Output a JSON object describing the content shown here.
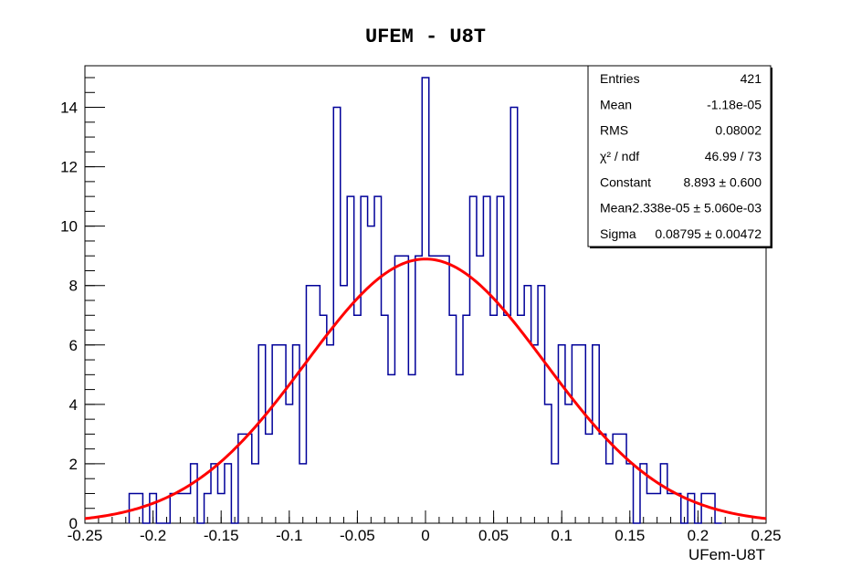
{
  "chart_data": {
    "type": "histogram",
    "title": "UFEM - U8T",
    "xlabel": "UFem-U8T",
    "ylabel": "",
    "xlim": [
      -0.25,
      0.25
    ],
    "ylim": [
      0,
      15.4
    ],
    "x_ticks": [
      -0.25,
      -0.2,
      -0.15,
      -0.1,
      -0.05,
      0,
      0.05,
      0.1,
      0.15,
      0.2,
      0.25
    ],
    "x_tick_labels": [
      "-0.25",
      "-0.2",
      "-0.15",
      "-0.1",
      "-0.05",
      "0",
      "0.05",
      "0.1",
      "0.15",
      "0.2",
      "0.25"
    ],
    "y_ticks": [
      0,
      2,
      4,
      6,
      8,
      10,
      12,
      14
    ],
    "y_tick_labels": [
      "0",
      "2",
      "4",
      "6",
      "8",
      "10",
      "12",
      "14"
    ],
    "bin_width": 0.005,
    "bins": [
      {
        "x": -0.215,
        "count": 1
      },
      {
        "x": -0.21,
        "count": 1
      },
      {
        "x": -0.205,
        "count": 0
      },
      {
        "x": -0.2,
        "count": 1
      },
      {
        "x": -0.195,
        "count": 0
      },
      {
        "x": -0.19,
        "count": 0
      },
      {
        "x": -0.185,
        "count": 1
      },
      {
        "x": -0.18,
        "count": 1
      },
      {
        "x": -0.175,
        "count": 1
      },
      {
        "x": -0.17,
        "count": 2
      },
      {
        "x": -0.165,
        "count": 0
      },
      {
        "x": -0.16,
        "count": 1
      },
      {
        "x": -0.155,
        "count": 2
      },
      {
        "x": -0.15,
        "count": 1
      },
      {
        "x": -0.145,
        "count": 2
      },
      {
        "x": -0.14,
        "count": 0
      },
      {
        "x": -0.135,
        "count": 3
      },
      {
        "x": -0.13,
        "count": 3
      },
      {
        "x": -0.125,
        "count": 2
      },
      {
        "x": -0.12,
        "count": 6
      },
      {
        "x": -0.115,
        "count": 3
      },
      {
        "x": -0.11,
        "count": 6
      },
      {
        "x": -0.105,
        "count": 6
      },
      {
        "x": -0.1,
        "count": 4
      },
      {
        "x": -0.095,
        "count": 6
      },
      {
        "x": -0.09,
        "count": 2
      },
      {
        "x": -0.085,
        "count": 8
      },
      {
        "x": -0.08,
        "count": 8
      },
      {
        "x": -0.075,
        "count": 7
      },
      {
        "x": -0.07,
        "count": 6
      },
      {
        "x": -0.065,
        "count": 14
      },
      {
        "x": -0.06,
        "count": 8
      },
      {
        "x": -0.055,
        "count": 11
      },
      {
        "x": -0.05,
        "count": 7
      },
      {
        "x": -0.045,
        "count": 11
      },
      {
        "x": -0.04,
        "count": 10
      },
      {
        "x": -0.035,
        "count": 11
      },
      {
        "x": -0.03,
        "count": 7
      },
      {
        "x": -0.025,
        "count": 5
      },
      {
        "x": -0.02,
        "count": 9
      },
      {
        "x": -0.015,
        "count": 9
      },
      {
        "x": -0.01,
        "count": 5
      },
      {
        "x": -0.005,
        "count": 9
      },
      {
        "x": 0.0,
        "count": 15
      },
      {
        "x": 0.005,
        "count": 9
      },
      {
        "x": 0.01,
        "count": 9
      },
      {
        "x": 0.015,
        "count": 9
      },
      {
        "x": 0.02,
        "count": 7
      },
      {
        "x": 0.025,
        "count": 5
      },
      {
        "x": 0.03,
        "count": 7
      },
      {
        "x": 0.035,
        "count": 11
      },
      {
        "x": 0.04,
        "count": 9
      },
      {
        "x": 0.045,
        "count": 11
      },
      {
        "x": 0.05,
        "count": 7
      },
      {
        "x": 0.055,
        "count": 11
      },
      {
        "x": 0.06,
        "count": 7
      },
      {
        "x": 0.065,
        "count": 14
      },
      {
        "x": 0.07,
        "count": 7
      },
      {
        "x": 0.075,
        "count": 8
      },
      {
        "x": 0.08,
        "count": 6
      },
      {
        "x": 0.085,
        "count": 8
      },
      {
        "x": 0.09,
        "count": 4
      },
      {
        "x": 0.095,
        "count": 2
      },
      {
        "x": 0.1,
        "count": 6
      },
      {
        "x": 0.105,
        "count": 4
      },
      {
        "x": 0.11,
        "count": 6
      },
      {
        "x": 0.115,
        "count": 6
      },
      {
        "x": 0.12,
        "count": 3
      },
      {
        "x": 0.125,
        "count": 6
      },
      {
        "x": 0.13,
        "count": 3
      },
      {
        "x": 0.135,
        "count": 2
      },
      {
        "x": 0.14,
        "count": 3
      },
      {
        "x": 0.145,
        "count": 3
      },
      {
        "x": 0.15,
        "count": 2
      },
      {
        "x": 0.155,
        "count": 0
      },
      {
        "x": 0.16,
        "count": 2
      },
      {
        "x": 0.165,
        "count": 1
      },
      {
        "x": 0.17,
        "count": 1
      },
      {
        "x": 0.175,
        "count": 2
      },
      {
        "x": 0.18,
        "count": 1
      },
      {
        "x": 0.185,
        "count": 1
      },
      {
        "x": 0.19,
        "count": 0
      },
      {
        "x": 0.195,
        "count": 1
      },
      {
        "x": 0.2,
        "count": 0
      },
      {
        "x": 0.205,
        "count": 1
      },
      {
        "x": 0.21,
        "count": 1
      },
      {
        "x": 0.215,
        "count": 0
      }
    ],
    "histogram_color": "#000099",
    "fit": {
      "function": "gaus",
      "constant": 8.893,
      "mean": -2.338e-05,
      "sigma": 0.08795,
      "color": "#ff0000"
    },
    "stats_box": {
      "placement": "top-right",
      "rows": [
        {
          "label": "Entries",
          "value": "421"
        },
        {
          "label": "Mean",
          "value": "-1.18e-05"
        },
        {
          "label": "RMS",
          "value": "0.08002"
        },
        {
          "label": "χ² / ndf",
          "value": "46.99 / 73"
        },
        {
          "label": "Constant",
          "value": "8.893 ± 0.600"
        },
        {
          "label": "Mean",
          "value": "-2.338e-05 ± 5.060e-03"
        },
        {
          "label": "Sigma",
          "value": "0.08795 ± 0.00472"
        }
      ]
    },
    "grid": false
  }
}
